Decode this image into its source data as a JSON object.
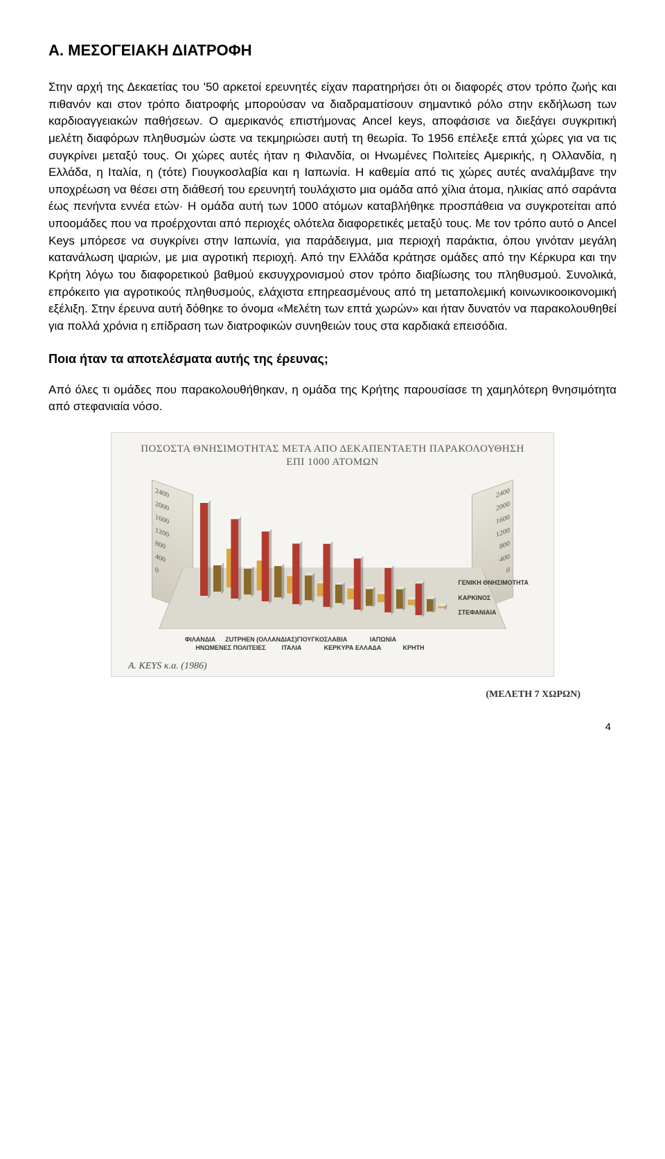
{
  "title": "Α. ΜΕΣΟΓΕΙΑΚΗ ΔΙΑΤΡΟΦΗ",
  "paragraph1": "Στην αρχή της Δεκαετίας του '50 αρκετοί ερευνητές είχαν παρατηρήσει ότι οι διαφορές στον τρόπο ζωής και πιθανόν και στον τρόπο διατροφής μπορούσαν να διαδραματίσουν σημαντικό ρόλο στην εκδήλωση των καρδιοαγγειακών παθήσεων. Ο αμερικανός επιστήμονας Ancel keys, αποφάσισε να διεξάγει συγκριτική μελέτη διαφόρων πληθυσμών ώστε να τεκμηριώσει αυτή τη θεωρία. Το 1956 επέλεξε επτά χώρες για να τις συγκρίνει μεταξύ τους. Οι χώρες αυτές ήταν η Φιλανδία, οι Ηνωμένες Πολιτείες Αμερικής, η Ολλανδία, η Ελλάδα, η Ιταλία, η (τότε) Γιουγκοσλαβία και η Ιαπωνία. Η καθεμία από τις χώρες αυτές αναλάμβανε την υποχρέωση να θέσει στη διάθεσή του ερευνητή τουλάχιστο μια ομάδα από χίλια άτομα, ηλικίας από σαράντα έως πενήντα εννέα ετών· Η ομάδα αυτή των 1000 ατόμων καταβλήθηκε προσπάθεια να συγκροτείται από υποομάδες  που να προέρχονται από περιοχές ολότελα διαφορετικές μεταξύ τους. Με τον τρόπο αυτό ο Ancel Keys μπόρεσε να συγκρίνει στην Ιαπωνία, για παράδειγμα, μια περιοχή παράκτια, όπου γινόταν μεγάλη κατανάλωση ψαριών, με μια αγροτική περιοχή. Από την Ελλάδα κράτησε ομάδες από την Κέρκυρα και την Κρήτη λόγω του διαφορετικού βαθμού εκσυγχρονισμού στον τρόπο διαβίωσης του πληθυσμού. Συνολικά, επρόκειτο για αγροτικούς πληθυσμούς, ελάχιστα επηρεασμένους από τη μεταπολεμική κοινωνικοοικονομική εξέλιξη. Στην έρευνα αυτή δόθηκε το όνομα «Μελέτη των επτά χωρών» και ήταν δυνατόν να παρακολουθηθεί για πολλά χρόνια η επίδραση των διατροφικών συνηθειών τους στα καρδιακά επεισόδια.",
  "subhead": "Ποια ήταν τα αποτελέσματα αυτής της έρευνας;",
  "paragraph2": "Από όλες τι ομάδες που παρακολουθήθηκαν, η ομάδα της Κρήτης παρουσίασε τη χαμηλότερη θνησιμότητα από στεφανιαία νόσο.",
  "chart": {
    "type": "3d-bar",
    "title_line1": "ΠΟΣΟΣΤΑ ΘΝΗΣΙΜΟΤΗΤΑΣ ΜΕΤΑ ΑΠΟ ΔΕΚΑΠΕΝΤΑΕΤΗ ΠΑΡΑΚΟΛΟΥΘΗΣΗ",
    "title_line2": "ΕΠΙ 1000 ΑΤΟΜΩΝ",
    "y_ticks": [
      "2400",
      "2000",
      "1600",
      "1200",
      "800",
      "400",
      "0"
    ],
    "y_max": 2400,
    "categories": [
      "ΦΙΛΑΝΔΙΑ",
      "ΗΝΩΜΕΝΕΣ ΠΟΛΙΤΕΙΕΣ",
      "ZUTPHEN (ΟΛΛΑΝΔΙΑΣ)",
      "ΙΤΑΛΙΑ",
      "ΓΙΟΥΓΚΟΣΛΑΒΙΑ",
      "ΚΕΡΚΥΡΑ ΕΛΛΑΔΑ",
      "ΙΑΠΩΝΙΑ",
      "ΚΡΗΤΗ"
    ],
    "series": [
      {
        "name": "ΓΕΝΙΚΗ ΘΝΗΣΙΜΟΤΗΤΑ",
        "color": "#b33a2e"
      },
      {
        "name": "ΚΑΡΚΙΝΟΣ",
        "color": "#8a6a2a"
      },
      {
        "name": "ΣΤΕΦΑΝΙΑΙΑ",
        "color": "#d9a441"
      }
    ],
    "values": {
      "ΦΙΛΑΝΔΙΑ": [
        2300,
        650,
        950
      ],
      "ΗΝΩΜΕΝΕΣ ΠΟΛΙΤΕΙΕΣ": [
        2000,
        650,
        750
      ],
      "ZUTPHEN (ΟΛΛΑΝΔΙΑΣ)": [
        1800,
        800,
        450
      ],
      "ΙΤΑΛΙΑ": [
        1600,
        650,
        350
      ],
      "ΓΙΟΥΓΚΟΣΛΑΒΙΑ": [
        1700,
        500,
        300
      ],
      "ΚΕΡΚΥΡΑ ΕΛΛΑΔΑ": [
        1400,
        450,
        220
      ],
      "ΙΑΠΩΝΙΑ": [
        1250,
        550,
        150
      ],
      "ΚΡΗΤΗ": [
        900,
        350,
        50
      ]
    },
    "source": "A. KEYS κ.α. (1986)",
    "study_label": "(ΜΕΛΕΤΗ 7 ΧΩΡΩΝ)",
    "floor_color": "#dcd9cf",
    "wall_color": "#e0ddd2",
    "border_color": "#b8b4a8",
    "background": "#f5f4f0"
  },
  "page_number": "4"
}
